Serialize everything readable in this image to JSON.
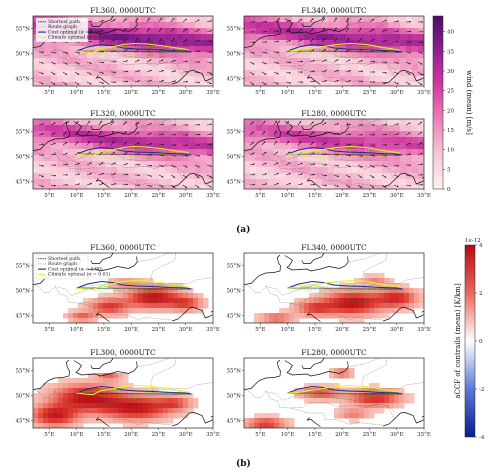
{
  "figure": {
    "label_a": "(a)",
    "label_b": "(b)"
  },
  "chart_data": [
    {
      "type": "heatmap",
      "name": "wind",
      "panels": [
        {
          "title": "FL360, 0000UTC"
        },
        {
          "title": "FL340, 0000UTC"
        },
        {
          "title": "FL320, 0000UTC"
        },
        {
          "title": "FL280, 0000UTC"
        }
      ],
      "lon_ticks": [
        "5°E",
        "10°E",
        "15°E",
        "20°E",
        "25°E",
        "30°E",
        "35°E"
      ],
      "lat_ticks": [
        "55°N",
        "50°N",
        "45°N"
      ],
      "lon_range": [
        2,
        35
      ],
      "lat_range": [
        43.5,
        57.5
      ],
      "colorbar": {
        "label": "wind (mean) [m/s]",
        "ticks": [
          "0",
          "5",
          "10",
          "15",
          "20",
          "25",
          "30",
          "35",
          "40"
        ],
        "range": [
          0,
          44
        ],
        "colors": [
          "#fff3f0",
          "#f7c6d6",
          "#eb82b8",
          "#cf3aa2",
          "#8e1f8e",
          "#4a0c69"
        ]
      },
      "legend": [
        {
          "label": "Shortest path",
          "color": "#111111",
          "style": "dotted"
        },
        {
          "label": "Route graph",
          "color": "#c8d45a",
          "style": "thin"
        },
        {
          "label": "Cost optimal (α = 1.00)",
          "color": "#1b2f8c",
          "style": "solid"
        },
        {
          "label": "Climate optimal (α = 0.01)",
          "color": "#f2f020",
          "style": "solid"
        }
      ]
    },
    {
      "type": "heatmap",
      "name": "aCCF of contrails",
      "panels": [
        {
          "title": "FL360, 0000UTC"
        },
        {
          "title": "FL340, 0000UTC"
        },
        {
          "title": "FL300, 0000UTC"
        },
        {
          "title": "FL280, 0000UTC"
        }
      ],
      "lon_ticks": [
        "5°E",
        "10°E",
        "15°E",
        "20°E",
        "25°E",
        "30°E",
        "35°E"
      ],
      "lat_ticks": [
        "55°N",
        "50°N",
        "45°N"
      ],
      "lon_range": [
        2,
        35
      ],
      "lat_range": [
        43.5,
        57.5
      ],
      "colorbar": {
        "label": "aCCF of contrails (mean) [K/km]",
        "exponent": "1e-12",
        "ticks": [
          "4",
          "2",
          "0",
          "-2",
          "-4"
        ],
        "range": [
          -4,
          4
        ],
        "colors": [
          "#0b1a8c",
          "#5a7ad8",
          "#ffffff",
          "#e86a5c",
          "#b50a14"
        ]
      },
      "legend": [
        {
          "label": "Shortest path",
          "color": "#111111",
          "style": "dotted"
        },
        {
          "label": "Route graph",
          "color": "#5fbf52",
          "style": "thin"
        },
        {
          "label": "Cost optimal (α = 1.00)",
          "color": "#1b2f8c",
          "style": "solid"
        },
        {
          "label": "Climate optimal (α = 0.01)",
          "color": "#f2f020",
          "style": "solid"
        }
      ]
    }
  ]
}
